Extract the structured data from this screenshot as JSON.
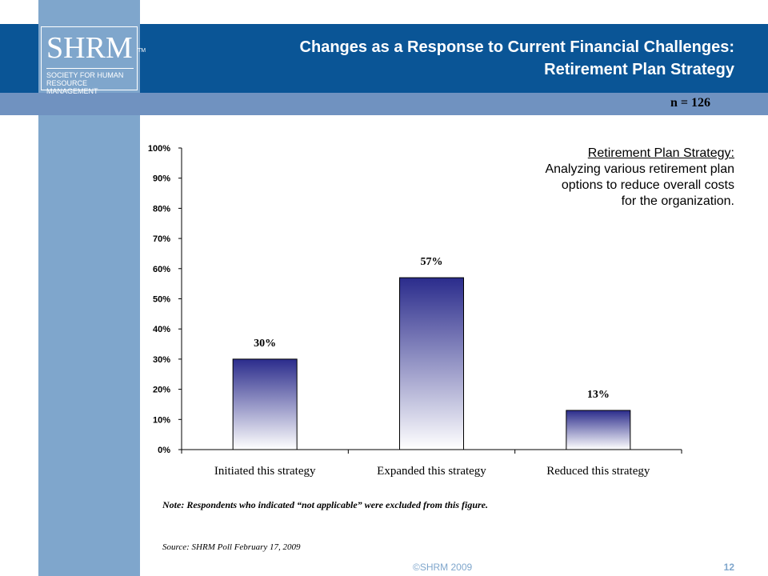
{
  "logo": {
    "name": "SHRM",
    "tm": "TM",
    "subtitle_line1": "SOCIETY FOR HUMAN",
    "subtitle_line2": "RESOURCE MANAGEMENT"
  },
  "header": {
    "title_line1": "Changes as a Response to Current Financial Challenges:",
    "title_line2": "Retirement Plan Strategy",
    "n_label": "n = 126"
  },
  "annotation": {
    "title": "Retirement Plan Strategy:",
    "line1": "Analyzing various retirement plan",
    "line2": "options to reduce overall costs",
    "line3": "for the organization."
  },
  "chart_data": {
    "type": "bar",
    "categories": [
      "Initiated this strategy",
      "Expanded this strategy",
      "Reduced this strategy"
    ],
    "values": [
      30,
      57,
      13
    ],
    "value_labels": [
      "30%",
      "57%",
      "13%"
    ],
    "ylim": [
      0,
      100
    ],
    "yticks": [
      "0%",
      "10%",
      "20%",
      "30%",
      "40%",
      "50%",
      "60%",
      "70%",
      "80%",
      "90%",
      "100%"
    ],
    "title": "",
    "xlabel": "",
    "ylabel": "",
    "grid": false,
    "bar_gradient_top": "#2b2c8c",
    "bar_gradient_bottom": "#ffffff"
  },
  "footer": {
    "note": "Note: Respondents who indicated “not applicable” were excluded from this figure.",
    "source": "Source: SHRM Poll February 17, 2009",
    "copyright": "©SHRM 2009",
    "page_number": "12"
  },
  "colors": {
    "header_blue": "#0a5596",
    "strip_blue": "#7fa6cc",
    "band_blue": "#7092c0"
  }
}
